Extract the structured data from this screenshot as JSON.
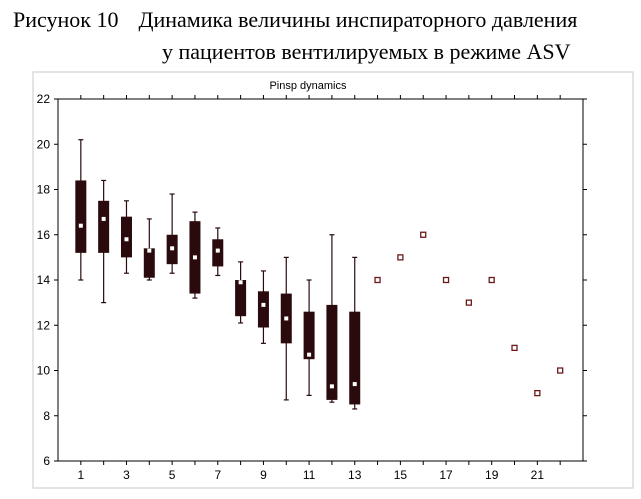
{
  "caption": {
    "figure_label": "Рисунок 10",
    "line1": "Динамика величины инспираторного давления",
    "line2": "у пациентов  вентилируемых в режиме ASV"
  },
  "chart_data": {
    "type": "box",
    "title": "Pinsp dynamics",
    "xlabel": "",
    "ylabel": "",
    "xlim": [
      0,
      23
    ],
    "ylim": [
      6,
      22
    ],
    "y_ticks": [
      6,
      8,
      10,
      12,
      14,
      16,
      18,
      20,
      22
    ],
    "x_ticks": [
      1,
      3,
      5,
      7,
      9,
      11,
      13,
      15,
      17,
      19,
      21
    ],
    "grid": false,
    "colors": {
      "box": "#2a0a0c",
      "median": "#ffffff",
      "point": "#6b1a1a",
      "frame": "#000000",
      "outer_border": "#c8c8c8"
    },
    "boxes": [
      {
        "x": 1,
        "min": 14.0,
        "q1": 15.2,
        "median": 16.4,
        "q3": 18.4,
        "max": 20.2
      },
      {
        "x": 2,
        "min": 13.0,
        "q1": 15.2,
        "median": 16.7,
        "q3": 17.5,
        "max": 18.4
      },
      {
        "x": 3,
        "min": 14.3,
        "q1": 15.0,
        "median": 15.8,
        "q3": 16.8,
        "max": 17.5
      },
      {
        "x": 4,
        "min": 14.0,
        "q1": 14.1,
        "median": 15.3,
        "q3": 15.4,
        "max": 16.7
      },
      {
        "x": 5,
        "min": 14.3,
        "q1": 14.7,
        "median": 15.4,
        "q3": 16.0,
        "max": 17.8
      },
      {
        "x": 6,
        "min": 13.2,
        "q1": 13.4,
        "median": 15.0,
        "q3": 16.6,
        "max": 17.0
      },
      {
        "x": 7,
        "min": 14.2,
        "q1": 14.6,
        "median": 15.3,
        "q3": 15.8,
        "max": 16.3
      },
      {
        "x": 8,
        "min": 12.1,
        "q1": 12.4,
        "median": 13.9,
        "q3": 14.0,
        "max": 14.8
      },
      {
        "x": 9,
        "min": 11.2,
        "q1": 11.9,
        "median": 12.9,
        "q3": 13.5,
        "max": 14.4
      },
      {
        "x": 10,
        "min": 8.7,
        "q1": 11.2,
        "median": 12.3,
        "q3": 13.4,
        "max": 15.0
      },
      {
        "x": 11,
        "min": 8.9,
        "q1": 10.5,
        "median": 10.7,
        "q3": 12.6,
        "max": 14.0
      },
      {
        "x": 12,
        "min": 8.6,
        "q1": 8.7,
        "median": 9.3,
        "q3": 12.9,
        "max": 16.0
      },
      {
        "x": 13,
        "min": 8.3,
        "q1": 8.5,
        "median": 9.4,
        "q3": 12.6,
        "max": 15.0
      }
    ],
    "points": [
      {
        "x": 14,
        "y": 14
      },
      {
        "x": 15,
        "y": 15
      },
      {
        "x": 16,
        "y": 16
      },
      {
        "x": 17,
        "y": 14
      },
      {
        "x": 18,
        "y": 13
      },
      {
        "x": 19,
        "y": 14
      },
      {
        "x": 20,
        "y": 11
      },
      {
        "x": 21,
        "y": 9
      },
      {
        "x": 22,
        "y": 10
      }
    ]
  }
}
